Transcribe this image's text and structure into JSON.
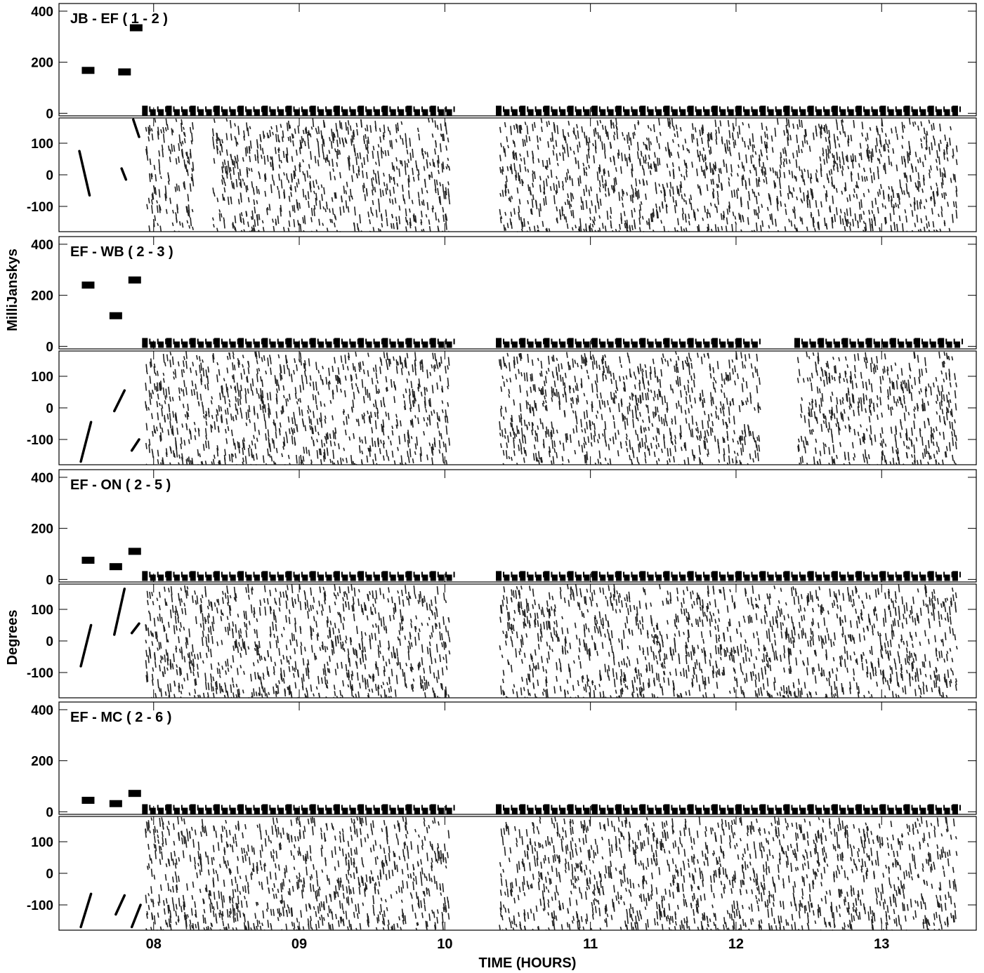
{
  "chart_data": {
    "type": "scatter",
    "xlabel": "TIME (HOURS)",
    "ylabel_amplitude": "MilliJanskys",
    "ylabel_phase": "Degrees",
    "xlim": [
      7.35,
      13.65
    ],
    "x_ticks": [
      "08",
      "09",
      "10",
      "11",
      "12",
      "13"
    ],
    "x_tick_values": [
      8,
      9,
      10,
      11,
      12,
      13
    ],
    "amp_ylim": [
      -10,
      430
    ],
    "amp_ticks": [
      0,
      200,
      400
    ],
    "phase_ylim": [
      -180,
      180
    ],
    "phase_ticks": [
      -100,
      0,
      100
    ],
    "panels": [
      {
        "title": "JB - EF ( 1 - 2 )",
        "calibrator_amplitude": [
          {
            "x": 7.55,
            "y": 168
          },
          {
            "x": 7.8,
            "y": 162
          },
          {
            "x": 7.88,
            "y": 335
          }
        ],
        "target_amplitude_level": 5,
        "scan_blocks": [
          [
            7.92,
            10.03
          ],
          [
            10.35,
            13.52
          ]
        ],
        "phase_gaps": [
          [
            8.28,
            8.4
          ]
        ],
        "calibrator_phase_tracks": [
          {
            "x0": 7.49,
            "x1": 7.56,
            "y0": 75,
            "y1": -65
          },
          {
            "x0": 7.78,
            "x1": 7.81,
            "y0": 20,
            "y1": -15
          },
          {
            "x0": 7.86,
            "x1": 7.9,
            "y0": 175,
            "y1": 120
          }
        ]
      },
      {
        "title": "EF - WB ( 2 - 3 )",
        "calibrator_amplitude": [
          {
            "x": 7.55,
            "y": 240
          },
          {
            "x": 7.74,
            "y": 120
          },
          {
            "x": 7.87,
            "y": 260
          }
        ],
        "target_amplitude_level": 8,
        "scan_blocks": [
          [
            7.92,
            10.03
          ],
          [
            10.35,
            12.17
          ],
          [
            12.4,
            13.52
          ]
        ],
        "phase_gaps": [
          [
            12.17,
            12.4
          ]
        ],
        "calibrator_phase_tracks": [
          {
            "x0": 7.5,
            "x1": 7.57,
            "y0": -170,
            "y1": -45
          },
          {
            "x0": 7.73,
            "x1": 7.8,
            "y0": -10,
            "y1": 55
          },
          {
            "x0": 7.85,
            "x1": 7.9,
            "y0": -135,
            "y1": -100
          }
        ]
      },
      {
        "title": "EF - ON ( 2 - 5 )",
        "calibrator_amplitude": [
          {
            "x": 7.55,
            "y": 75
          },
          {
            "x": 7.74,
            "y": 50
          },
          {
            "x": 7.87,
            "y": 110
          }
        ],
        "target_amplitude_level": 8,
        "scan_blocks": [
          [
            7.92,
            10.03
          ],
          [
            10.35,
            13.52
          ]
        ],
        "phase_gaps": [],
        "calibrator_phase_tracks": [
          {
            "x0": 7.5,
            "x1": 7.57,
            "y0": -80,
            "y1": 50
          },
          {
            "x0": 7.73,
            "x1": 7.8,
            "y0": 20,
            "y1": 165
          },
          {
            "x0": 7.85,
            "x1": 7.9,
            "y0": 25,
            "y1": 55
          }
        ]
      },
      {
        "title": "EF - MC ( 2 - 6 )",
        "calibrator_amplitude": [
          {
            "x": 7.55,
            "y": 45
          },
          {
            "x": 7.74,
            "y": 32
          },
          {
            "x": 7.87,
            "y": 72
          }
        ],
        "target_amplitude_level": 5,
        "scan_blocks": [
          [
            7.92,
            10.03
          ],
          [
            10.35,
            13.52
          ]
        ],
        "phase_gaps": [],
        "calibrator_phase_tracks": [
          {
            "x0": 7.5,
            "x1": 7.57,
            "y0": -170,
            "y1": -65
          },
          {
            "x0": 7.74,
            "x1": 7.8,
            "y0": -130,
            "y1": -70
          },
          {
            "x0": 7.85,
            "x1": 7.91,
            "y0": -170,
            "y1": -100
          }
        ]
      }
    ]
  }
}
